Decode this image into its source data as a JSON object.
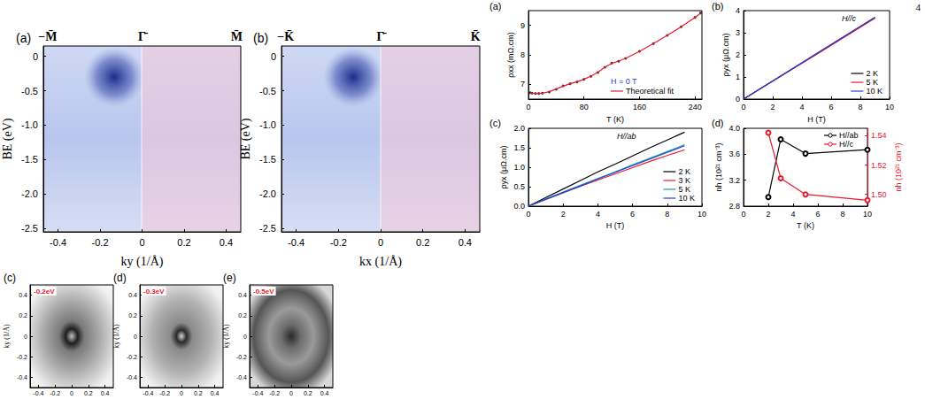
{
  "page_number": "4",
  "chart_data": [
    {
      "panel": "(a)",
      "type": "image",
      "top_ticks": [
        {
          "value": -0.45,
          "label": "−M̄"
        },
        {
          "value": 0,
          "label": "Γ̄"
        },
        {
          "value": 0.45,
          "label": "M̄"
        }
      ],
      "xlabel": "ky (1/Å)",
      "ylabel": "BE (eV)",
      "xlim": [
        -0.47,
        0.47
      ],
      "xticks": [
        -0.4,
        -0.2,
        0,
        0.2,
        0.4
      ],
      "ylim": [
        -2.55,
        0.15
      ],
      "yticks": [
        0,
        -0.5,
        {
          "value": -1,
          "label": "-1.0"
        },
        -1.5,
        {
          "value": -2,
          "label": "-2.0"
        },
        -2.5
      ],
      "grid": false
    },
    {
      "panel": "(b)",
      "type": "image",
      "top_ticks": [
        {
          "value": -0.45,
          "label": "−K̄"
        },
        {
          "value": 0,
          "label": "Γ̄"
        },
        {
          "value": 0.45,
          "label": "K̄"
        }
      ],
      "xlabel": "kx (1/Å)",
      "ylabel": "BE (eV)",
      "xlim": [
        -0.47,
        0.47
      ],
      "xticks": [
        -0.4,
        -0.2,
        0,
        0.2,
        0.4
      ],
      "ylim": [
        -2.55,
        0.15
      ],
      "yticks": [
        0,
        -0.5,
        {
          "value": -1,
          "label": "-1.0"
        },
        -1.5,
        {
          "value": -2,
          "label": "-2.0"
        },
        -2.5
      ],
      "grid": false
    },
    {
      "panel": "(c)",
      "type": "image",
      "annotation": "-0.2eV",
      "ylabel": "ky (1/Å)",
      "xlim": [
        -0.5,
        0.5
      ],
      "xticks": [
        -0.4,
        -0.2,
        0,
        0.2,
        0.4
      ],
      "ylim": [
        -0.5,
        0.5
      ],
      "yticks": [
        -0.4,
        -0.2,
        0,
        0.2,
        0.4
      ],
      "grid": false
    },
    {
      "panel": "(d)",
      "type": "image",
      "annotation": "-0.3eV",
      "ylabel": "ky (1/Å)",
      "xlim": [
        -0.5,
        0.5
      ],
      "xticks": [
        -0.4,
        -0.2,
        0,
        0.2,
        0.4
      ],
      "ylim": [
        -0.5,
        0.5
      ],
      "yticks": [
        -0.4,
        -0.2,
        0,
        0.2,
        0.4
      ],
      "grid": false
    },
    {
      "panel": "(e)",
      "type": "image",
      "annotation": "-0.5eV",
      "ylabel": "ky (1/Å)",
      "xlim": [
        -0.5,
        0.5
      ],
      "xticks": [
        -0.4,
        -0.2,
        0,
        0.2,
        0.4
      ],
      "ylim": [
        -0.5,
        0.5
      ],
      "yticks": [
        -0.4,
        -0.2,
        0,
        0.2,
        0.4
      ],
      "grid": false
    },
    {
      "panel": "(a)",
      "type": "line",
      "annotation": "H = 0 T",
      "xlabel": "T (K)",
      "ylabel": "ρxx (mΩ.cm)",
      "xlim": [
        0,
        250
      ],
      "xticks": [
        0,
        80,
        160,
        240
      ],
      "ylim": [
        6.5,
        9.5
      ],
      "yticks": [
        7,
        8,
        9
      ],
      "legend": "lower right",
      "grid": false,
      "x": [
        2,
        5,
        10,
        15,
        20,
        30,
        40,
        50,
        60,
        70,
        80,
        90,
        100,
        110,
        120,
        130,
        140,
        160,
        180,
        200,
        220,
        240,
        248
      ],
      "series": [
        {
          "type": "scatter",
          "color": "#000000",
          "marker": "circle",
          "values": [
            6.72,
            6.7,
            6.69,
            6.69,
            6.7,
            6.74,
            6.83,
            6.95,
            7.02,
            7.08,
            7.17,
            7.27,
            7.4,
            7.58,
            7.72,
            7.78,
            7.88,
            8.12,
            8.38,
            8.66,
            8.95,
            9.27,
            9.42
          ]
        },
        {
          "name": "Theoretical fit",
          "color": "#e8192c",
          "line_style": "solid",
          "values": [
            6.71,
            6.7,
            6.69,
            6.69,
            6.7,
            6.75,
            6.84,
            6.94,
            7.02,
            7.09,
            7.17,
            7.28,
            7.41,
            7.58,
            7.71,
            7.79,
            7.88,
            8.12,
            8.38,
            8.66,
            8.95,
            9.27,
            9.41
          ]
        }
      ]
    },
    {
      "panel": "(b)",
      "type": "line",
      "annotation": "H//c",
      "xlabel": "H (T)",
      "ylabel": "ρyx (μΩ.cm)",
      "xlim": [
        0,
        10
      ],
      "xticks": [
        0,
        2,
        4,
        6,
        8,
        10
      ],
      "ylim": [
        0,
        4
      ],
      "yticks": [
        0,
        1,
        2,
        3,
        4
      ],
      "legend": "lower right",
      "grid": false,
      "x": [
        0,
        1,
        2,
        3,
        4,
        5,
        6,
        7,
        8,
        9
      ],
      "series": [
        {
          "name": "2 K",
          "color": "#000000",
          "line_style": "solid",
          "values": [
            0,
            0.41,
            0.82,
            1.23,
            1.64,
            2.05,
            2.46,
            2.87,
            3.28,
            3.69
          ]
        },
        {
          "name": "5 K",
          "color": "#e8192c",
          "line_style": "solid",
          "values": [
            0,
            0.41,
            0.81,
            1.22,
            1.62,
            2.02,
            2.43,
            2.84,
            3.25,
            3.66
          ]
        },
        {
          "name": "10 K",
          "color": "#1f3fd8",
          "line_style": "solid",
          "values": [
            0,
            0.41,
            0.82,
            1.23,
            1.64,
            2.06,
            2.47,
            2.88,
            3.29,
            3.7
          ]
        }
      ]
    },
    {
      "panel": "(c)",
      "type": "line",
      "annotation": "H//ab",
      "xlabel": "H (T)",
      "ylabel": "ρyx (μΩ.cm)",
      "xlim": [
        0,
        10
      ],
      "xticks": [
        0,
        2,
        4,
        6,
        8,
        10
      ],
      "ylim": [
        0,
        2
      ],
      "yticks": [
        {
          "value": 0,
          "label": "0.0"
        },
        0.5,
        {
          "value": 1,
          "label": "1.0"
        },
        1.5,
        {
          "value": 2,
          "label": "2.0"
        }
      ],
      "legend": "lower right",
      "grid": false,
      "x": [
        0,
        1,
        2,
        3,
        4,
        5,
        6,
        7,
        8,
        9
      ],
      "series": [
        {
          "name": "2 K",
          "color": "#000000",
          "line_style": "solid",
          "values": [
            0,
            0.22,
            0.44,
            0.66,
            0.88,
            1.08,
            1.29,
            1.5,
            1.7,
            1.9
          ]
        },
        {
          "name": "3 K",
          "color": "#e8192c",
          "line_style": "solid",
          "values": [
            0,
            0.17,
            0.34,
            0.51,
            0.67,
            0.83,
            0.99,
            1.15,
            1.3,
            1.45
          ]
        },
        {
          "name": "5 K",
          "color": "#1b9e9e",
          "line_style": "solid",
          "values": [
            0,
            0.18,
            0.36,
            0.54,
            0.71,
            0.88,
            1.06,
            1.23,
            1.4,
            1.58
          ]
        },
        {
          "name": "10 K",
          "color": "#1f3fd8",
          "line_style": "solid",
          "values": [
            0,
            0.18,
            0.35,
            0.52,
            0.7,
            0.87,
            1.04,
            1.21,
            1.38,
            1.55
          ]
        }
      ]
    },
    {
      "panel": "(d)",
      "type": "line",
      "xlabel": "T (K)",
      "ylabel": "nh (10²¹ cm⁻³)",
      "y2label": "nh (10²¹ cm⁻³)",
      "xlim": [
        0,
        10
      ],
      "xticks": [
        0,
        2,
        4,
        6,
        8,
        10
      ],
      "ylim": [
        2.8,
        4.0
      ],
      "yticks": [
        2.8,
        3.2,
        3.6,
        {
          "value": 4,
          "label": "4.0"
        }
      ],
      "y2lim": [
        1.492,
        1.545
      ],
      "y2ticks": [
        {
          "value": 1.5,
          "label": "1.50"
        },
        {
          "value": 1.52,
          "label": "1.52"
        },
        {
          "value": 1.54,
          "label": "1.54"
        }
      ],
      "legend": "upper right",
      "grid": false,
      "x": [
        2,
        3,
        5,
        10
      ],
      "series": [
        {
          "name": "H//ab",
          "color": "#000000",
          "marker": "open_circle",
          "line_style": "solid",
          "values": [
            2.94,
            3.83,
            3.61,
            3.67
          ]
        },
        {
          "name": "H//c",
          "color": "#e8192c",
          "marker": "open_circle",
          "line_style": "solid",
          "axis": "y2",
          "values": [
            1.542,
            1.511,
            1.5,
            1.496
          ]
        }
      ]
    }
  ]
}
